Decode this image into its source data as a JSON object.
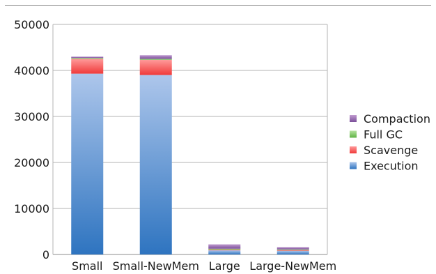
{
  "chart_data": {
    "type": "bar",
    "stacked": true,
    "categories": [
      "Small",
      "Small-NewMem",
      "Large",
      "Large-NewMem"
    ],
    "series": [
      {
        "name": "Execution",
        "values": [
          39300,
          39000,
          900,
          800
        ],
        "color_top": "#adc6eb",
        "color_bottom": "#2e74c0"
      },
      {
        "name": "Scavenge",
        "values": [
          3200,
          3300,
          150,
          150
        ],
        "color_top": "#ff9a9a",
        "color_bottom": "#f03a3a"
      },
      {
        "name": "Full GC",
        "values": [
          200,
          200,
          200,
          150
        ],
        "color_top": "#b6e3a0",
        "color_bottom": "#5fb345"
      },
      {
        "name": "Compaction",
        "values": [
          300,
          800,
          950,
          500
        ],
        "color_top": "#c09bd0",
        "color_bottom": "#7b4f9a"
      }
    ],
    "ylim": [
      0,
      50000
    ],
    "yticks": [
      "0",
      "10000",
      "20000",
      "30000",
      "40000",
      "50000"
    ],
    "grid": true,
    "legend_position": "right",
    "title": "",
    "xlabel": "",
    "ylabel": ""
  }
}
